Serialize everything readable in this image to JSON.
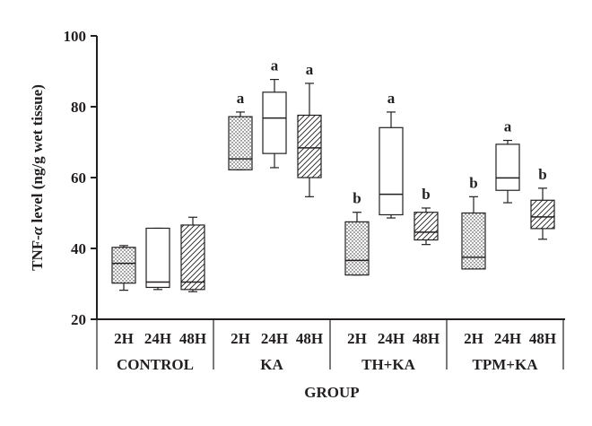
{
  "chart_data": {
    "type": "box",
    "title": "",
    "xlabel": "GROUP",
    "ylabel_prefix": "TNF-",
    "ylabel_greek": "α",
    "ylabel_suffix": " level (ng/g wet tissue)",
    "ylim": [
      20,
      100
    ],
    "yticks": [
      "20",
      "40",
      "60",
      "80",
      "100"
    ],
    "grid": false,
    "groups": [
      {
        "name": "CONTROL",
        "boxes": [
          {
            "label": "2H",
            "pattern": "dots",
            "sig": "",
            "whisker_low": 28.2,
            "q1": 30.2,
            "median": 35.8,
            "q3": 40.3,
            "whisker_high": 40.8
          },
          {
            "label": "24H",
            "pattern": "plain",
            "sig": "",
            "whisker_low": 28.4,
            "q1": 29.0,
            "median": 30.5,
            "q3": 45.7,
            "whisker_high": 45.7
          },
          {
            "label": "48H",
            "pattern": "hatch",
            "sig": "",
            "whisker_low": 27.8,
            "q1": 28.4,
            "median": 30.5,
            "q3": 46.6,
            "whisker_high": 48.8
          }
        ]
      },
      {
        "name": "KA",
        "boxes": [
          {
            "label": "2H",
            "pattern": "dots",
            "sig": "a",
            "whisker_low": 62.2,
            "q1": 62.2,
            "median": 65.3,
            "q3": 77.2,
            "whisker_high": 78.5
          },
          {
            "label": "24H",
            "pattern": "plain",
            "sig": "a",
            "whisker_low": 62.8,
            "q1": 66.8,
            "median": 76.8,
            "q3": 84.1,
            "whisker_high": 87.7
          },
          {
            "label": "48H",
            "pattern": "hatch",
            "sig": "a",
            "whisker_low": 54.6,
            "q1": 60.0,
            "median": 68.4,
            "q3": 77.6,
            "whisker_high": 86.6
          }
        ]
      },
      {
        "name": "TH+KA",
        "boxes": [
          {
            "label": "2H",
            "pattern": "dots",
            "sig": "b",
            "whisker_low": 32.5,
            "q1": 32.5,
            "median": 36.6,
            "q3": 47.5,
            "whisker_high": 50.2
          },
          {
            "label": "24H",
            "pattern": "plain",
            "sig": "a",
            "whisker_low": 48.6,
            "q1": 49.5,
            "median": 55.3,
            "q3": 74.1,
            "whisker_high": 78.5
          },
          {
            "label": "48H",
            "pattern": "hatch",
            "sig": "b",
            "whisker_low": 41.1,
            "q1": 42.4,
            "median": 44.6,
            "q3": 50.2,
            "whisker_high": 51.4
          }
        ]
      },
      {
        "name": "TPM+KA",
        "boxes": [
          {
            "label": "2H",
            "pattern": "dots",
            "sig": "b",
            "whisker_low": 34.2,
            "q1": 34.2,
            "median": 37.5,
            "q3": 50.0,
            "whisker_high": 54.6
          },
          {
            "label": "24H",
            "pattern": "plain",
            "sig": "a",
            "whisker_low": 52.9,
            "q1": 56.4,
            "median": 59.9,
            "q3": 69.4,
            "whisker_high": 70.5
          },
          {
            "label": "48H",
            "pattern": "hatch",
            "sig": "b",
            "whisker_low": 42.6,
            "q1": 45.6,
            "median": 48.9,
            "q3": 53.6,
            "whisker_high": 57.0
          }
        ]
      }
    ]
  }
}
